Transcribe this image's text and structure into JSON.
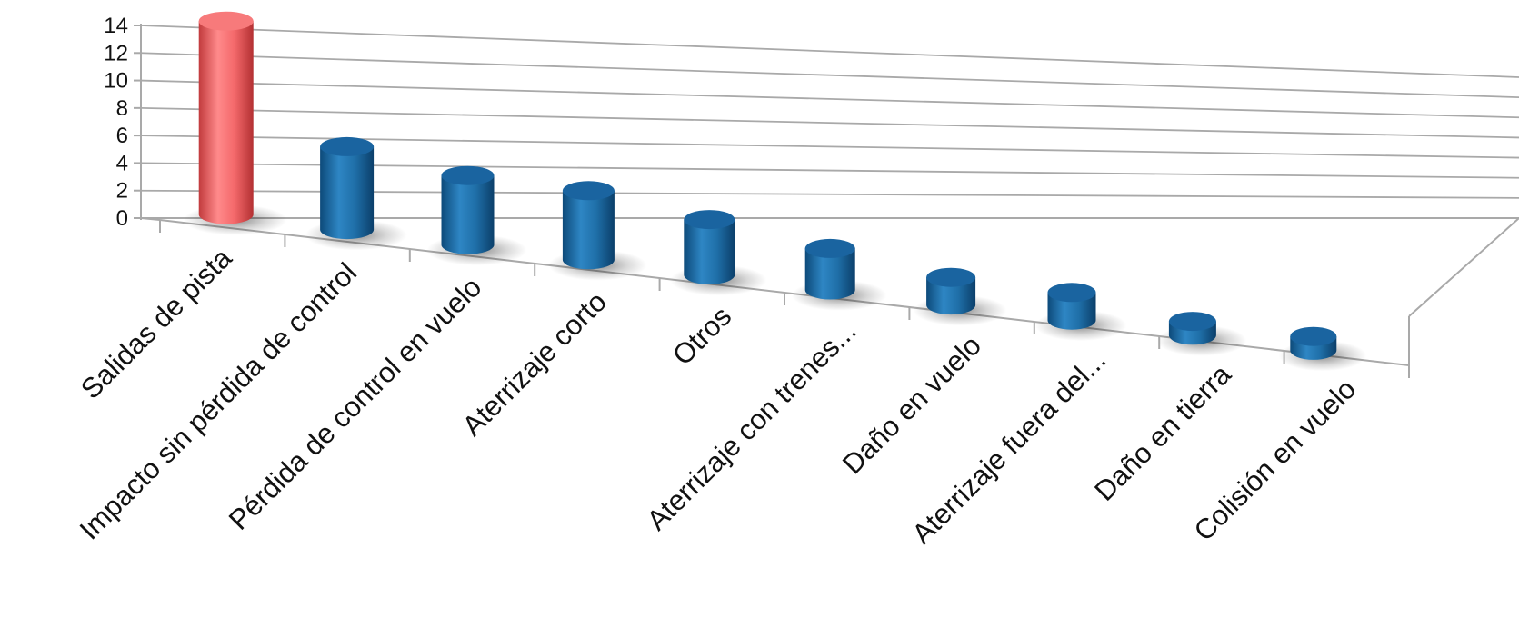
{
  "chart_data": {
    "type": "bar",
    "style": "3d-cylinder",
    "categories": [
      "Salidas de pista",
      "Impacto sin pérdida de control",
      "Pérdida de control en vuelo",
      "Aterrizaje corto",
      "Otros",
      "Aterrizaje con trenes...",
      "Daño en vuelo",
      "Aterrizaje fuera del...",
      "Daño en tierra",
      "Colisión en vuelo"
    ],
    "values": [
      14,
      6,
      5,
      5,
      4,
      3,
      2,
      2,
      1,
      1
    ],
    "bar_colors": [
      "#f4696b",
      "#1f6fa8",
      "#1f6fa8",
      "#1f6fa8",
      "#1f6fa8",
      "#1f6fa8",
      "#1f6fa8",
      "#1f6fa8",
      "#1f6fa8",
      "#1f6fa8"
    ],
    "highlight_color": "#f4696b",
    "bar_color": "#1f6fa8",
    "title": "",
    "xlabel": "",
    "ylabel": "",
    "ylim": [
      0,
      14
    ],
    "yticks": [
      "0",
      "2",
      "4",
      "6",
      "8",
      "10",
      "12",
      "14"
    ],
    "grid": true,
    "legend": "none"
  }
}
